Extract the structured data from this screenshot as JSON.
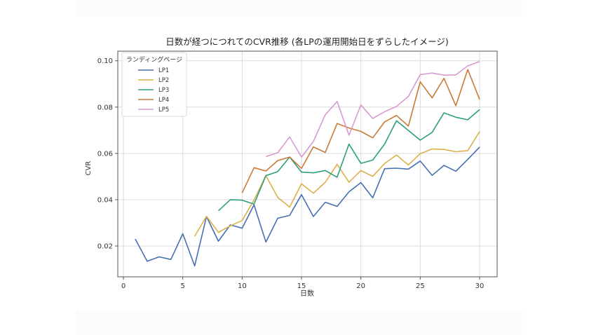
{
  "chart_data": {
    "type": "line",
    "title": "日数が経つにつれてのCVR推移 (各LPの運用開始日をずらしたイメージ)",
    "xlabel": "日数",
    "ylabel": "CVR",
    "xlim": [
      -0.5,
      31.5
    ],
    "ylim": [
      0.006,
      0.104
    ],
    "xticks": [
      0,
      5,
      10,
      15,
      20,
      25,
      30
    ],
    "xtick_labels": [
      "0",
      "5",
      "10",
      "15",
      "20",
      "25",
      "30"
    ],
    "yticks": [
      0.02,
      0.04,
      0.06,
      0.08,
      0.1
    ],
    "ytick_labels": [
      "0.02",
      "0.04",
      "0.06",
      "0.08",
      "0.10"
    ],
    "grid": true,
    "legend": {
      "title": "ランディングページ",
      "position": "upper left"
    },
    "series": [
      {
        "name": "LP1",
        "color": "#4470b4",
        "start_day": 1,
        "values": [
          0.023,
          0.0134,
          0.0153,
          0.0142,
          0.0253,
          0.0114,
          0.0327,
          0.0221,
          0.0291,
          0.0277,
          0.0378,
          0.0217,
          0.032,
          0.0332,
          0.0422,
          0.0327,
          0.0389,
          0.0371,
          0.0434,
          0.0474,
          0.0408,
          0.0534,
          0.0536,
          0.0532,
          0.0567,
          0.0505,
          0.0548,
          0.0523,
          0.0574,
          0.0627
        ]
      },
      {
        "name": "LP2",
        "color": "#dcb04a",
        "start_day": 6,
        "values": [
          0.0242,
          0.0328,
          0.0259,
          0.0287,
          0.031,
          0.0399,
          0.0504,
          0.041,
          0.0368,
          0.0469,
          0.0428,
          0.0475,
          0.0553,
          0.0475,
          0.0526,
          0.0501,
          0.0556,
          0.0593,
          0.055,
          0.0599,
          0.0619,
          0.0617,
          0.0607,
          0.0612,
          0.0694
        ]
      },
      {
        "name": "LP3",
        "color": "#2c9f7e",
        "start_day": 8,
        "values": [
          0.0352,
          0.04,
          0.0398,
          0.0381,
          0.0504,
          0.0521,
          0.0584,
          0.0519,
          0.0516,
          0.0526,
          0.0497,
          0.064,
          0.0557,
          0.0571,
          0.064,
          0.0741,
          0.0699,
          0.0657,
          0.0691,
          0.0775,
          0.0756,
          0.0745,
          0.0789
        ]
      },
      {
        "name": "LP4",
        "color": "#c97a35",
        "start_day": 10,
        "values": [
          0.0429,
          0.0538,
          0.0524,
          0.0569,
          0.0584,
          0.0535,
          0.0628,
          0.0604,
          0.0729,
          0.071,
          0.0695,
          0.0667,
          0.0736,
          0.0764,
          0.0718,
          0.0909,
          0.084,
          0.0924,
          0.0806,
          0.0962,
          0.0833
        ]
      },
      {
        "name": "LP5",
        "color": "#d89ad0",
        "start_day": 12,
        "values": [
          0.0586,
          0.0603,
          0.0671,
          0.0584,
          0.0651,
          0.0767,
          0.0824,
          0.0679,
          0.0809,
          0.0751,
          0.078,
          0.0803,
          0.0846,
          0.094,
          0.0947,
          0.0938,
          0.0939,
          0.0978,
          0.0997
        ]
      }
    ]
  }
}
